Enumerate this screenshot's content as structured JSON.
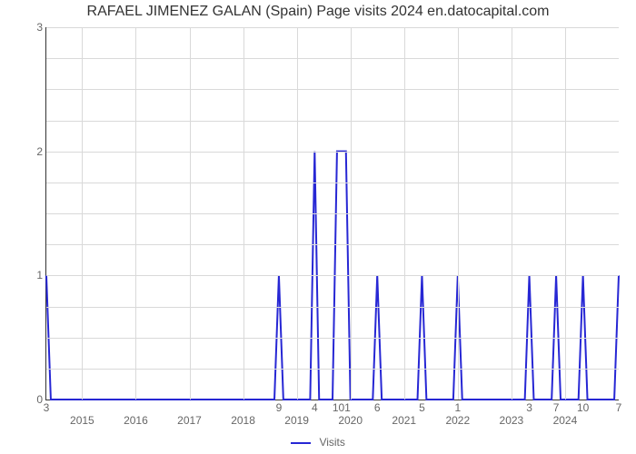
{
  "chart": {
    "type": "line",
    "title": "RAFAEL JIMENEZ GALAN (Spain) Page visits 2024 en.datocapital.com",
    "title_fontsize": 16,
    "title_color": "#333333",
    "background_color": "#ffffff",
    "grid_color": "#d9d9d9",
    "axis_color": "#333333",
    "tick_color": "#666666",
    "tick_fontsize": 12,
    "line_color": "#2727d4",
    "line_width": 2,
    "ylim": [
      0,
      3
    ],
    "yticks": [
      0,
      1,
      2,
      3
    ],
    "hgrid_steps": [
      0.25,
      0.5,
      0.75,
      1,
      1.25,
      1.5,
      1.75,
      2,
      2.25,
      2.5,
      2.75,
      3
    ],
    "x_extent": 128,
    "year_ticks": [
      {
        "x": 8,
        "label": "2015"
      },
      {
        "x": 20,
        "label": "2016"
      },
      {
        "x": 32,
        "label": "2017"
      },
      {
        "x": 44,
        "label": "2018"
      },
      {
        "x": 56,
        "label": "2019"
      },
      {
        "x": 68,
        "label": "2020"
      },
      {
        "x": 80,
        "label": "2021"
      },
      {
        "x": 92,
        "label": "2022"
      },
      {
        "x": 104,
        "label": "2023"
      },
      {
        "x": 116,
        "label": "2024"
      }
    ],
    "value_ticks": [
      {
        "x": 0,
        "label": "3"
      },
      {
        "x": 52,
        "label": "9"
      },
      {
        "x": 60,
        "label": "4"
      },
      {
        "x": 66,
        "label": "101"
      },
      {
        "x": 74,
        "label": "6"
      },
      {
        "x": 84,
        "label": "5"
      },
      {
        "x": 92,
        "label": "1"
      },
      {
        "x": 108,
        "label": "3"
      },
      {
        "x": 114,
        "label": "7"
      },
      {
        "x": 120,
        "label": "10"
      },
      {
        "x": 128,
        "label": "7"
      }
    ],
    "points": [
      {
        "x": 0,
        "y": 1
      },
      {
        "x": 1,
        "y": 0
      },
      {
        "x": 51,
        "y": 0
      },
      {
        "x": 52,
        "y": 1
      },
      {
        "x": 53,
        "y": 0
      },
      {
        "x": 59,
        "y": 0
      },
      {
        "x": 60,
        "y": 2
      },
      {
        "x": 61,
        "y": 0
      },
      {
        "x": 64,
        "y": 0
      },
      {
        "x": 65,
        "y": 2
      },
      {
        "x": 67,
        "y": 2
      },
      {
        "x": 68,
        "y": 0
      },
      {
        "x": 73,
        "y": 0
      },
      {
        "x": 74,
        "y": 1
      },
      {
        "x": 75,
        "y": 0
      },
      {
        "x": 83,
        "y": 0
      },
      {
        "x": 84,
        "y": 1
      },
      {
        "x": 85,
        "y": 0
      },
      {
        "x": 91,
        "y": 0
      },
      {
        "x": 92,
        "y": 1
      },
      {
        "x": 93,
        "y": 0
      },
      {
        "x": 107,
        "y": 0
      },
      {
        "x": 108,
        "y": 1
      },
      {
        "x": 109,
        "y": 0
      },
      {
        "x": 113,
        "y": 0
      },
      {
        "x": 114,
        "y": 1
      },
      {
        "x": 115,
        "y": 0
      },
      {
        "x": 119,
        "y": 0
      },
      {
        "x": 120,
        "y": 1
      },
      {
        "x": 121,
        "y": 0
      },
      {
        "x": 127,
        "y": 0
      },
      {
        "x": 128,
        "y": 1
      }
    ],
    "legend_label": "Visits"
  }
}
